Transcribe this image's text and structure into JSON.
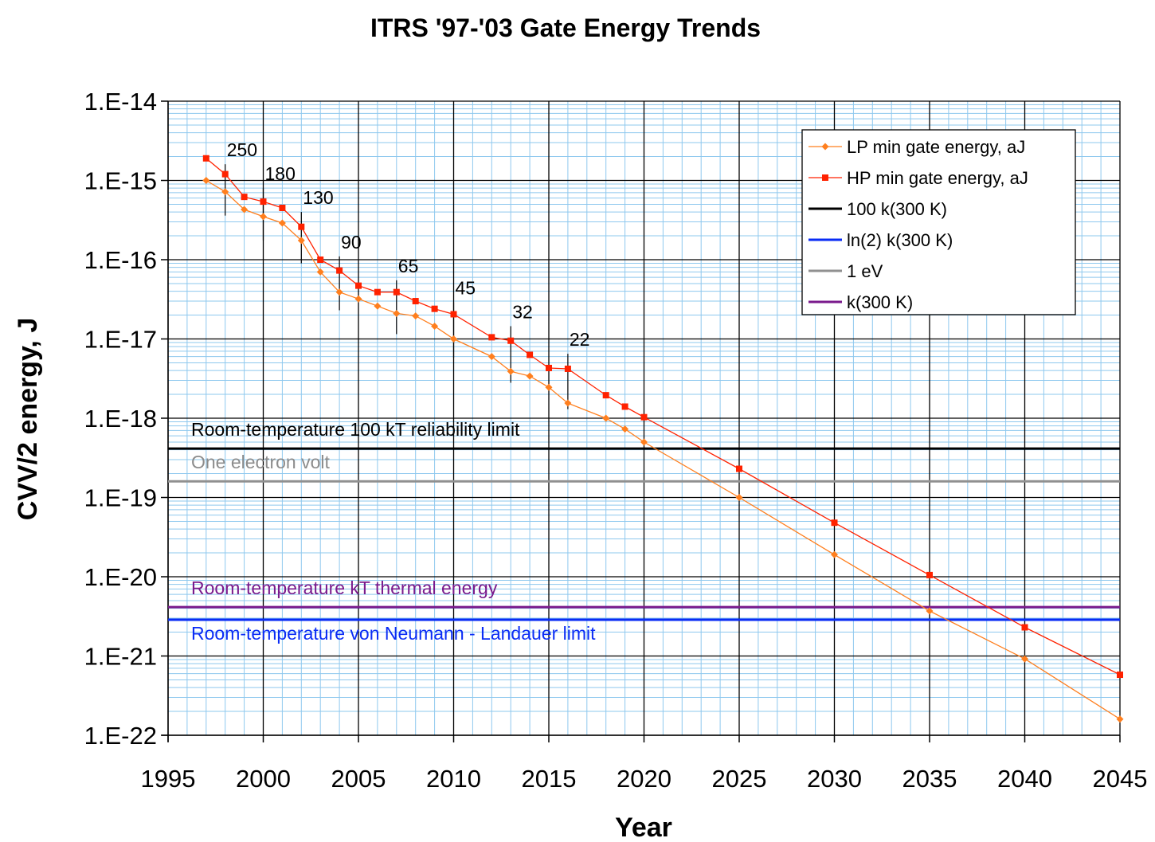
{
  "chart_data": {
    "type": "line",
    "title": "ITRS '97-'03 Gate Energy Trends",
    "xlabel": "Year",
    "ylabel": "CVV/2 energy, J",
    "xlim": [
      1995,
      2045
    ],
    "ylim": [
      1e-22,
      1e-14
    ],
    "y_scale": "log",
    "grid": true,
    "legend_position": "top-right",
    "x_ticks": [
      "1995",
      "2000",
      "2005",
      "2010",
      "2015",
      "2020",
      "2025",
      "2030",
      "2035",
      "2040",
      "2045"
    ],
    "x_tick_values": [
      1995,
      2000,
      2005,
      2010,
      2015,
      2020,
      2025,
      2030,
      2035,
      2040,
      2045
    ],
    "y_ticks": [
      "1.E-14",
      "1.E-15",
      "1.E-16",
      "1.E-17",
      "1.E-18",
      "1.E-19",
      "1.E-20",
      "1.E-21",
      "1.E-22"
    ],
    "y_tick_values": [
      1e-14,
      1e-15,
      1e-16,
      1e-17,
      1e-18,
      1e-19,
      1e-20,
      1e-21,
      1e-22
    ],
    "series": [
      {
        "name": "LP min gate energy, aJ",
        "color": "#ff7f1e",
        "marker": "diamond",
        "x": [
          1997,
          1998,
          1999,
          2000,
          2001,
          2002,
          2003,
          2004,
          2005,
          2006,
          2007,
          2008,
          2009,
          2010,
          2012,
          2013,
          2014,
          2015,
          2016,
          2018,
          2019,
          2020,
          2025,
          2030,
          2035,
          2040,
          2045
        ],
        "y": [
          1e-15,
          7.2e-16,
          4.3e-16,
          3.5e-16,
          2.9e-16,
          1.75e-16,
          7e-17,
          3.9e-17,
          3.2e-17,
          2.6e-17,
          2.1e-17,
          1.95e-17,
          1.45e-17,
          1e-17,
          6e-18,
          3.9e-18,
          3.4e-18,
          2.45e-18,
          1.55e-18,
          1e-18,
          7.3e-19,
          5e-19,
          1e-19,
          1.9e-20,
          3.7e-21,
          9.2e-22,
          1.6e-22
        ]
      },
      {
        "name": "HP min gate energy, aJ",
        "color": "#ff2200",
        "marker": "square",
        "x": [
          1997,
          1998,
          1999,
          2000,
          2001,
          2002,
          2003,
          2004,
          2005,
          2006,
          2007,
          2008,
          2009,
          2010,
          2012,
          2013,
          2014,
          2015,
          2016,
          2018,
          2019,
          2020,
          2025,
          2030,
          2035,
          2040,
          2045
        ],
        "y": [
          1.9e-15,
          1.2e-15,
          6.2e-16,
          5.4e-16,
          4.5e-16,
          2.6e-16,
          1e-16,
          7.3e-17,
          4.7e-17,
          3.9e-17,
          3.9e-17,
          3e-17,
          2.4e-17,
          2.05e-17,
          1.05e-17,
          9.5e-18,
          6.3e-18,
          4.3e-18,
          4.2e-18,
          1.95e-18,
          1.4e-18,
          1.03e-18,
          2.3e-19,
          4.8e-20,
          1.05e-20,
          2.3e-21,
          5.8e-22
        ]
      }
    ],
    "reference_lines": [
      {
        "name": "100 k(300 K)",
        "value": 4.14e-19,
        "color": "#000000",
        "annotation": "Room-temperature 100 kT reliability limit",
        "annotation_color": "#000000"
      },
      {
        "name": "ln(2) k(300 K)",
        "value": 2.87e-21,
        "color": "#0a2cf5",
        "annotation": "Room-temperature von Neumann - Landauer limit",
        "annotation_color": "#0a2cf5"
      },
      {
        "name": "1 eV",
        "value": 1.6e-19,
        "color": "#909090",
        "annotation": "One electron volt",
        "annotation_color": "#8c8c8c"
      },
      {
        "name": "k(300 K)",
        "value": 4.14e-21,
        "color": "#7a1a8c",
        "annotation": "Room-temperature kT thermal energy",
        "annotation_color": "#7a1a8c"
      }
    ],
    "node_annotations": [
      {
        "label": "250",
        "x": 1998,
        "bar_top": 1.6e-15,
        "bar_bottom": 3.6e-16
      },
      {
        "label": "180",
        "x": 2000,
        "bar_top": 8e-16,
        "bar_bottom": 1.75e-16
      },
      {
        "label": "130",
        "x": 2002,
        "bar_top": 4e-16,
        "bar_bottom": 9e-17
      },
      {
        "label": "90",
        "x": 2004,
        "bar_top": 1.1e-16,
        "bar_bottom": 2.3e-17
      },
      {
        "label": "65",
        "x": 2007,
        "bar_top": 5.5e-17,
        "bar_bottom": 1.15e-17
      },
      {
        "label": "45",
        "x": 2010,
        "bar_top": 2.9e-17,
        "bar_bottom": 5.8e-18
      },
      {
        "label": "32",
        "x": 2013,
        "bar_top": 1.45e-17,
        "bar_bottom": 2.8e-18
      },
      {
        "label": "22",
        "x": 2016,
        "bar_top": 6.5e-18,
        "bar_bottom": 1.3e-18
      }
    ]
  }
}
